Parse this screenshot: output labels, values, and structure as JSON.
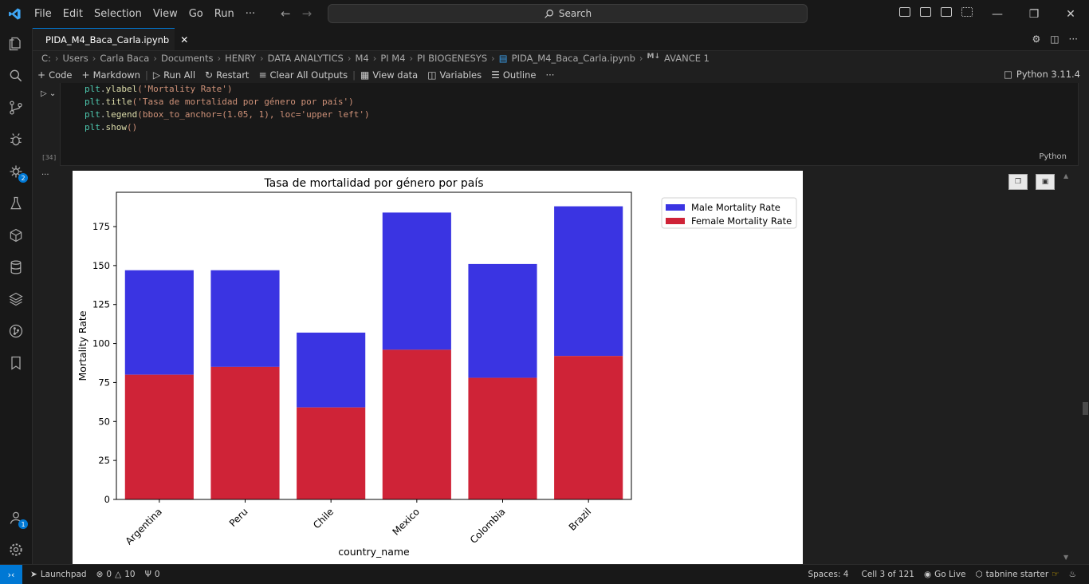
{
  "menu": [
    "File",
    "Edit",
    "Selection",
    "View",
    "Go",
    "Run",
    "···"
  ],
  "search": {
    "label": "Search"
  },
  "tab": {
    "title": "PIDA_M4_Baca_Carla.ipynb"
  },
  "breadcrumb": {
    "items": [
      "C:",
      "Users",
      "Carla Baca",
      "Documents",
      "HENRY",
      "DATA ANALYTICS",
      "M4",
      "PI M4",
      "PI BIOGENESYS",
      "PIDA_M4_Baca_Carla.ipynb",
      "AVANCE 1"
    ],
    "md_badge": "M↓"
  },
  "toolbar": {
    "code": "Code",
    "markdown": "Markdown",
    "run_all": "Run All",
    "restart": "Restart",
    "clear": "Clear All Outputs",
    "view_data": "View data",
    "variables": "Variables",
    "outline": "Outline",
    "more": "···",
    "kernel": "Python 3.11.4"
  },
  "cell": {
    "exec": "[34]",
    "lang": "Python"
  },
  "code_lines": [
    {
      "obj": "plt",
      "fn": "ylabel",
      "args": "('Mortality Rate')"
    },
    {
      "obj": "plt",
      "fn": "title",
      "args": "('Tasa de mortalidad por género por país')"
    },
    {
      "obj": "plt",
      "fn": "legend",
      "args": "(bbox_to_anchor=(1.05, 1), loc='upper left')"
    },
    {
      "obj": "plt",
      "fn": "show",
      "args": "()"
    }
  ],
  "activity_badges": {
    "extensions": "2",
    "accounts": "1"
  },
  "status": {
    "launchpad": "Launchpad",
    "errors": "0",
    "warnings": "10",
    "ports": "0",
    "spaces": "Spaces: 4",
    "cell": "Cell 3 of 121",
    "golive": "Go Live",
    "tabnine": "tabnine starter"
  },
  "colors": {
    "male": "#3a34e2",
    "female": "#cf2337",
    "accent": "#0078d4"
  },
  "chart_data": {
    "type": "bar",
    "stacked": true,
    "title": "Tasa de mortalidad por género por país",
    "xlabel": "country_name",
    "ylabel": "Mortality Rate",
    "categories": [
      "Argentina",
      "Peru",
      "Chile",
      "Mexico",
      "Colombia",
      "Brazil"
    ],
    "series": [
      {
        "name": "Male Mortality Rate",
        "values": [
          67,
          62,
          48,
          88,
          73,
          96
        ],
        "color": "#3a34e2"
      },
      {
        "name": "Female Mortality Rate",
        "values": [
          80,
          85,
          59,
          96,
          78,
          92
        ],
        "color": "#cf2337"
      }
    ],
    "totals": [
      147,
      147,
      107,
      184,
      151,
      188
    ],
    "ylim": [
      0,
      197
    ],
    "yticks": [
      0,
      25,
      50,
      75,
      100,
      125,
      150,
      175
    ],
    "legend": "upper-left-outside",
    "grid": false
  }
}
